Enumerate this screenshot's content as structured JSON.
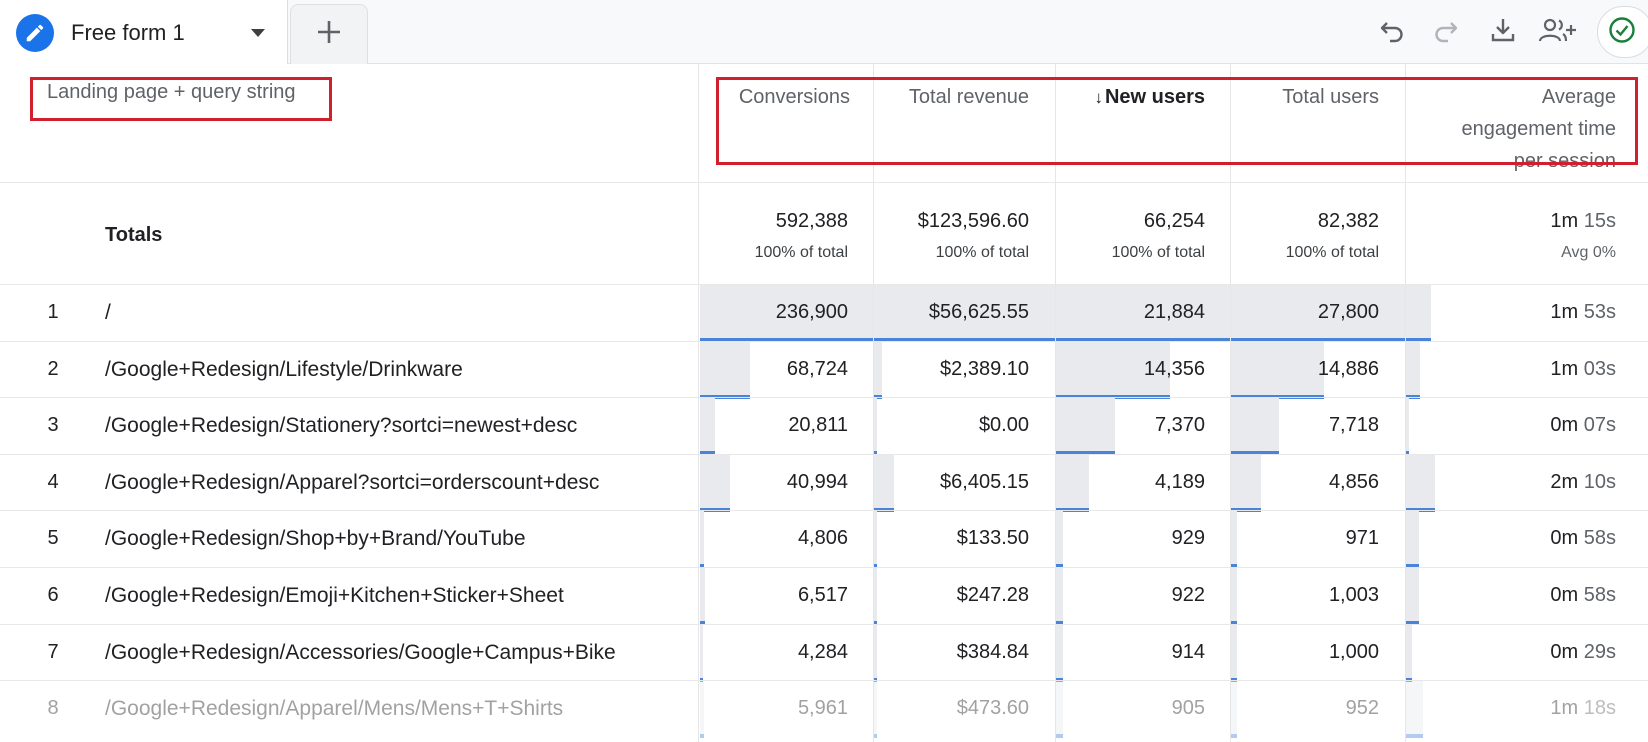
{
  "tab": {
    "title": "Free form 1"
  },
  "table": {
    "dimension_header": "Landing page + query string",
    "columns": [
      {
        "label": "Conversions"
      },
      {
        "label": "Total revenue"
      },
      {
        "label": "New users",
        "sort_arrow": "↓"
      },
      {
        "label": "Total users"
      },
      {
        "label_lines": [
          "Average",
          "engagement time",
          "per session"
        ]
      }
    ],
    "totals": {
      "label": "Totals",
      "values": [
        "592,388",
        "$123,596.60",
        "66,254",
        "82,382"
      ],
      "pcts": [
        "100% of total",
        "100% of total",
        "100% of total",
        "100% of total"
      ],
      "engagement": {
        "main": "1m",
        "secondary": "15s"
      },
      "engagement_pct": "Avg 0%"
    },
    "rows": [
      {
        "num": "1",
        "path": "/",
        "conversions": "236,900",
        "revenue": "$56,625.55",
        "new_users": "21,884",
        "total_users": "27,800",
        "eng_main": "1m",
        "eng_sec": "53s"
      },
      {
        "num": "2",
        "path": "/Google+Redesign/Lifestyle/Drinkware",
        "conversions": "68,724",
        "revenue": "$2,389.10",
        "new_users": "14,356",
        "total_users": "14,886",
        "eng_main": "1m",
        "eng_sec": "03s"
      },
      {
        "num": "3",
        "path": "/Google+Redesign/Stationery?sortci=newest+desc",
        "conversions": "20,811",
        "revenue": "$0.00",
        "new_users": "7,370",
        "total_users": "7,718",
        "eng_main": "0m",
        "eng_sec": "07s"
      },
      {
        "num": "4",
        "path": "/Google+Redesign/Apparel?sortci=orderscount+desc",
        "conversions": "40,994",
        "revenue": "$6,405.15",
        "new_users": "4,189",
        "total_users": "4,856",
        "eng_main": "2m",
        "eng_sec": "10s"
      },
      {
        "num": "5",
        "path": "/Google+Redesign/Shop+by+Brand/YouTube",
        "conversions": "4,806",
        "revenue": "$133.50",
        "new_users": "929",
        "total_users": "971",
        "eng_main": "0m",
        "eng_sec": "58s"
      },
      {
        "num": "6",
        "path": "/Google+Redesign/Emoji+Kitchen+Sticker+Sheet",
        "conversions": "6,517",
        "revenue": "$247.28",
        "new_users": "922",
        "total_users": "1,003",
        "eng_main": "0m",
        "eng_sec": "58s"
      },
      {
        "num": "7",
        "path": "/Google+Redesign/Accessories/Google+Campus+Bike",
        "conversions": "4,284",
        "revenue": "$384.84",
        "new_users": "914",
        "total_users": "1,000",
        "eng_main": "0m",
        "eng_sec": "29s"
      },
      {
        "num": "8",
        "path": "/Google+Redesign/Apparel/Mens/Mens+T+Shirts",
        "conversions": "5,961",
        "revenue": "$473.60",
        "new_users": "905",
        "total_users": "952",
        "eng_main": "1m",
        "eng_sec": "18s"
      }
    ]
  },
  "icons": {
    "tab": "pencil-icon",
    "dropdown": "dropdown-arrow-icon",
    "add": "plus-icon",
    "undo": "undo-icon",
    "redo": "redo-icon",
    "download": "download-icon",
    "share": "share-users-icon",
    "status": "check-circle-icon"
  },
  "colors": {
    "accent": "#1a73e8",
    "bar_fill": "#e8eaed",
    "bar_line": "#4a84d8",
    "highlight": "#d0202e",
    "status_green": "#188038"
  }
}
